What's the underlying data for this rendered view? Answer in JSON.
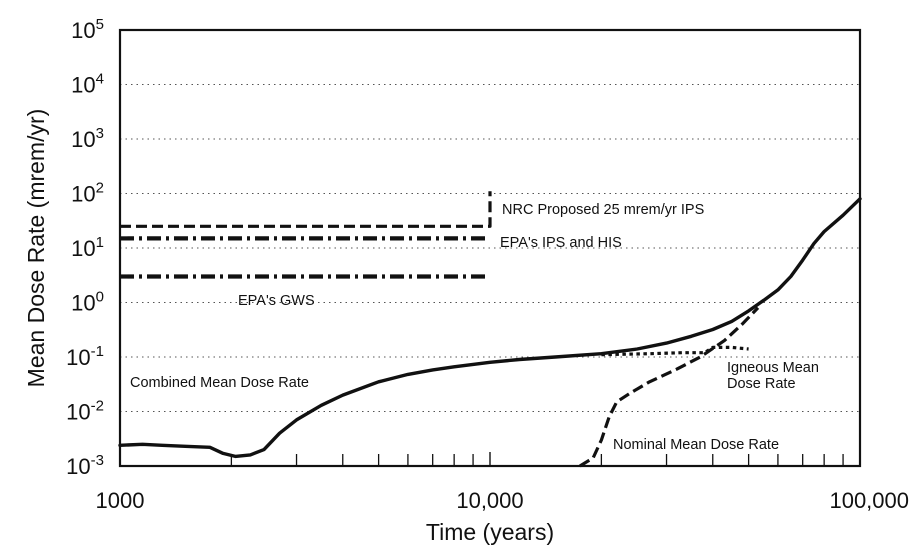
{
  "chart_data": {
    "type": "line",
    "xlabel": "Time (years)",
    "ylabel": "Mean Dose Rate (mrem/yr)",
    "x_scale": "log",
    "y_scale": "log",
    "xlim": [
      1000,
      100000
    ],
    "ylim": [
      0.001,
      100000
    ],
    "grid": "dotted horizontal lines at each decade",
    "x_tick_labels": [
      {
        "value": 1000,
        "label": "1000"
      },
      {
        "value": 10000,
        "label": "10,000"
      },
      {
        "value": 100000,
        "label": "100,000"
      }
    ],
    "y_tick_labels": [
      {
        "value": 0.001,
        "base": "10",
        "exp": "-3"
      },
      {
        "value": 0.01,
        "base": "10",
        "exp": "-2"
      },
      {
        "value": 0.1,
        "base": "10",
        "exp": "-1"
      },
      {
        "value": 1,
        "base": "10",
        "exp": "0"
      },
      {
        "value": 10,
        "base": "10",
        "exp": "1"
      },
      {
        "value": 100,
        "base": "10",
        "exp": "2"
      },
      {
        "value": 1000,
        "base": "10",
        "exp": "3"
      },
      {
        "value": 10000,
        "base": "10",
        "exp": "4"
      },
      {
        "value": 100000,
        "base": "10",
        "exp": "5"
      }
    ],
    "series": [
      {
        "name": "NRC Proposed 25 mrem/yr IPS",
        "style": "dashed",
        "color": "#111111",
        "points": [
          [
            1000,
            25
          ],
          [
            10000,
            25
          ],
          [
            10000,
            25
          ],
          [
            10000,
            110
          ]
        ]
      },
      {
        "name": "EPA's IPS and HIS",
        "style": "dash-dot",
        "color": "#111111",
        "points": [
          [
            1000,
            15
          ],
          [
            10000,
            15
          ]
        ]
      },
      {
        "name": "EPA's GWS",
        "style": "dash-dot",
        "color": "#111111",
        "points": [
          [
            1000,
            3
          ],
          [
            10000,
            3
          ]
        ]
      },
      {
        "name": "Combined Mean Dose Rate",
        "style": "solid",
        "color": "#111111",
        "points": [
          [
            1000,
            0.0024
          ],
          [
            1150,
            0.0025
          ],
          [
            1300,
            0.0024
          ],
          [
            1500,
            0.0023
          ],
          [
            1750,
            0.0022
          ],
          [
            1900,
            0.0017
          ],
          [
            2050,
            0.0015
          ],
          [
            2250,
            0.0016
          ],
          [
            2450,
            0.002
          ],
          [
            2700,
            0.004
          ],
          [
            3000,
            0.007
          ],
          [
            3500,
            0.013
          ],
          [
            4000,
            0.02
          ],
          [
            5000,
            0.035
          ],
          [
            6000,
            0.048
          ],
          [
            7000,
            0.058
          ],
          [
            8000,
            0.066
          ],
          [
            10000,
            0.08
          ],
          [
            12000,
            0.09
          ],
          [
            15000,
            0.1
          ],
          [
            20000,
            0.115
          ],
          [
            25000,
            0.14
          ],
          [
            30000,
            0.18
          ],
          [
            35000,
            0.24
          ],
          [
            40000,
            0.32
          ],
          [
            45000,
            0.45
          ],
          [
            50000,
            0.7
          ],
          [
            55000,
            1.1
          ],
          [
            60000,
            1.7
          ],
          [
            65000,
            3.0
          ],
          [
            70000,
            6
          ],
          [
            75000,
            12
          ],
          [
            80000,
            20
          ],
          [
            90000,
            40
          ],
          [
            100000,
            80
          ]
        ]
      },
      {
        "name": "Igneous Mean Dose Rate",
        "style": "dotted",
        "color": "#111111",
        "points": [
          [
            20000,
            0.11
          ],
          [
            27000,
            0.115
          ],
          [
            33000,
            0.12
          ],
          [
            38000,
            0.12
          ],
          [
            40000,
            0.15
          ],
          [
            45000,
            0.15
          ],
          [
            50000,
            0.14
          ]
        ]
      },
      {
        "name": "Nominal Mean Dose Rate",
        "style": "dashed",
        "color": "#111111",
        "points": [
          [
            17500,
            0.001
          ],
          [
            19000,
            0.0014
          ],
          [
            20000,
            0.003
          ],
          [
            21000,
            0.008
          ],
          [
            22000,
            0.015
          ],
          [
            24000,
            0.022
          ],
          [
            27000,
            0.035
          ],
          [
            32000,
            0.06
          ],
          [
            37000,
            0.1
          ],
          [
            43000,
            0.2
          ],
          [
            48000,
            0.4
          ],
          [
            53000,
            0.8
          ]
        ]
      }
    ],
    "annotations": [
      "NRC Proposed 25 mrem/yr IPS",
      "EPA's IPS and HIS",
      "EPA's GWS",
      "Combined Mean Dose Rate",
      "Igneous Mean",
      "Dose Rate",
      "Nominal Mean Dose Rate"
    ]
  }
}
